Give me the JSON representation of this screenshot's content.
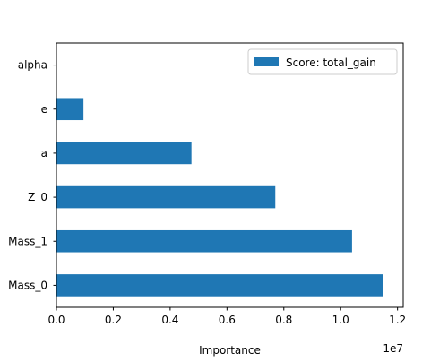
{
  "chart_data": {
    "type": "bar",
    "orientation": "horizontal",
    "title": "",
    "xlabel": "Importance",
    "ylabel": "",
    "x_scale_label": "1e7",
    "xlim": [
      0,
      1.22
    ],
    "x_ticks": [
      0.0,
      0.2,
      0.4,
      0.6,
      0.8,
      1.0,
      1.2
    ],
    "x_tick_labels": [
      "0.0",
      "0.2",
      "0.4",
      "0.6",
      "0.8",
      "1.0",
      "1.2"
    ],
    "categories": [
      "Mass_0",
      "Mass_1",
      "Z_0",
      "a",
      "e",
      "alpha"
    ],
    "series": [
      {
        "name": "Score: total_gain",
        "values": [
          1.15,
          1.04,
          0.77,
          0.475,
          0.095,
          0.0
        ],
        "color": "#1f77b4"
      }
    ],
    "legend_position": "top-right",
    "grid": false
  }
}
